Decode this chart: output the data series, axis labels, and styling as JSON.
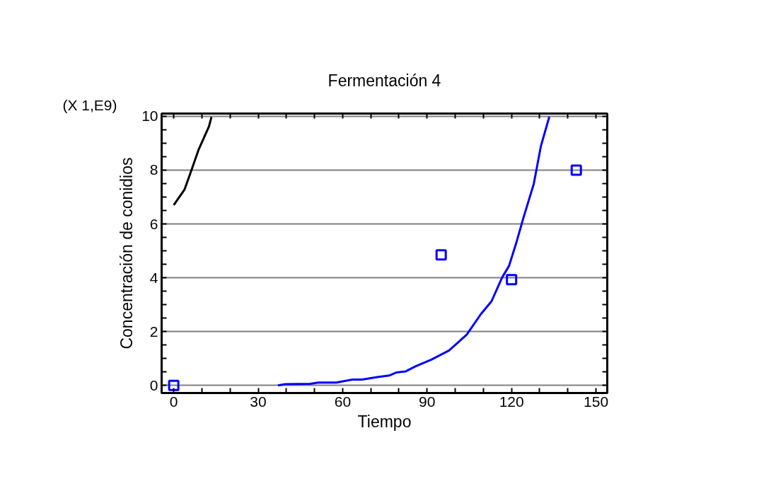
{
  "chart_data": {
    "type": "line",
    "title": "Fermentación 4",
    "xlabel": "Tiempo",
    "ylabel": "Concentración de conidios",
    "annotations": [
      "(X 1,E9)"
    ],
    "xlim": [
      -4.3,
      154
    ],
    "ylim": [
      -0.28,
      10.1
    ],
    "xticks": [
      0,
      {
        "value": 10,
        "label": null
      },
      {
        "value": 20,
        "label": null
      },
      30,
      {
        "value": 40,
        "label": null
      },
      {
        "value": 50,
        "label": null
      },
      60,
      {
        "value": 70,
        "label": null
      },
      {
        "value": 80,
        "label": null
      },
      90,
      {
        "value": 100,
        "label": null
      },
      {
        "value": 110,
        "label": null
      },
      120,
      {
        "value": 130,
        "label": null
      },
      {
        "value": 140,
        "label": null
      },
      150
    ],
    "yticks": [
      0,
      {
        "value": 0.5,
        "label": null
      },
      {
        "value": 1,
        "label": null
      },
      {
        "value": 1.5,
        "label": null
      },
      2,
      {
        "value": 2.5,
        "label": null
      },
      {
        "value": 3,
        "label": null
      },
      {
        "value": 3.5,
        "label": null
      },
      4,
      {
        "value": 4.5,
        "label": null
      },
      {
        "value": 5,
        "label": null
      },
      {
        "value": 5.5,
        "label": null
      },
      6,
      {
        "value": 6.5,
        "label": null
      },
      {
        "value": 7,
        "label": null
      },
      {
        "value": 7.5,
        "label": null
      },
      8,
      {
        "value": 8.5,
        "label": null
      },
      {
        "value": 9,
        "label": null
      },
      {
        "value": 9.5,
        "label": null
      },
      10
    ],
    "grid": "y",
    "series": [
      {
        "type": "scatter",
        "marker": "square",
        "color": "#0000ff",
        "x": [
          0,
          95,
          120,
          143
        ],
        "values": [
          0,
          4.85,
          3.93,
          8.0
        ]
      },
      {
        "type": "line",
        "line_style": "solid",
        "color": "#0000ff",
        "x": [
          37,
          39.6,
          48.4,
          51.4,
          57.7,
          63.5,
          66.9,
          72.3,
          76.5,
          79,
          82.3,
          85.7,
          91.5,
          97.8,
          104.1,
          109.1,
          112.9,
          116.6,
          119.1,
          121.6,
          124.2,
          127.9,
          130.4,
          133.4
        ],
        "values": [
          0,
          0.05,
          0.06,
          0.11,
          0.11,
          0.22,
          0.22,
          0.31,
          0.37,
          0.48,
          0.52,
          0.7,
          0.96,
          1.3,
          1.89,
          2.65,
          3.13,
          4.0,
          4.44,
          5.27,
          6.22,
          7.49,
          8.88,
          9.98
        ]
      },
      {
        "type": "line",
        "line_style": "solid",
        "color": "#000000",
        "x": [
          0,
          3.8,
          6.3,
          8.8,
          12.5,
          13.4
        ],
        "values": [
          6.7,
          7.27,
          8.0,
          8.75,
          9.62,
          9.97
        ]
      }
    ]
  }
}
